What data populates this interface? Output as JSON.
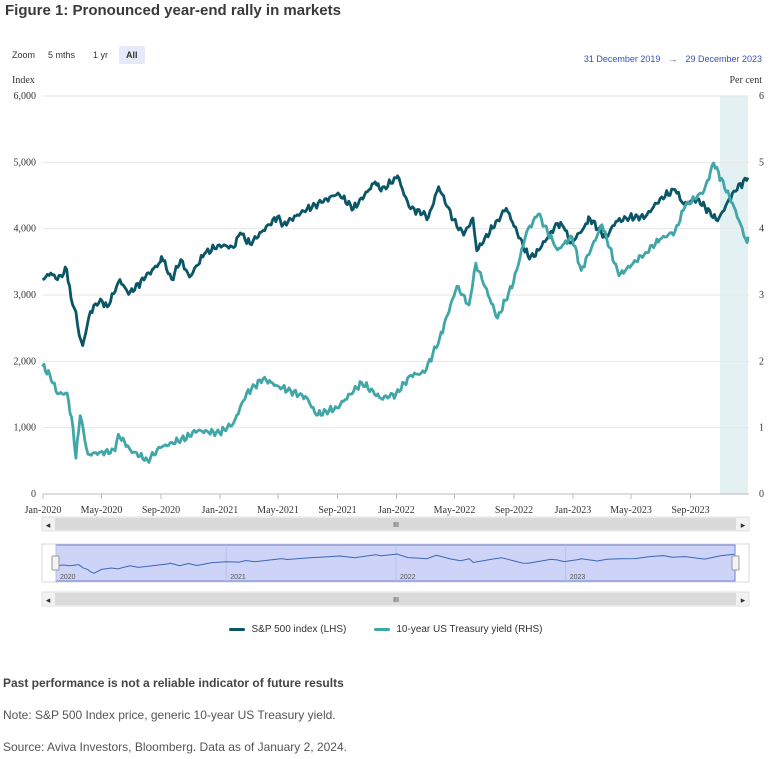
{
  "figure_title": "Figure 1: Pronounced year-end rally in markets",
  "zoom": {
    "label": "Zoom",
    "buttons": [
      {
        "label": "5 mths",
        "active": false
      },
      {
        "label": "1 yr",
        "active": false
      },
      {
        "label": "All",
        "active": true
      }
    ]
  },
  "range": {
    "from": "31 December 2019",
    "arrow": "→",
    "to": "29 December 2023"
  },
  "colors": {
    "sp500": "#0a5566",
    "treasury": "#41a6a8",
    "navigator_fill": "#cdd4f7",
    "highlight": "#e3f1f3"
  },
  "chart_data": {
    "type": "line",
    "title": "Pronounced year-end rally in markets",
    "y_left": {
      "label": "Index",
      "range": [
        0,
        6000
      ],
      "ticks": [
        "0",
        "1,000",
        "2,000",
        "3,000",
        "4,000",
        "5,000",
        "6,000"
      ]
    },
    "y_right": {
      "label": "Per cent",
      "range": [
        0,
        6
      ],
      "ticks": [
        "0",
        "1",
        "2",
        "3",
        "4",
        "5",
        "6"
      ]
    },
    "x_ticks": [
      "Jan-2020",
      "May-2020",
      "Sep-2020",
      "Jan-2021",
      "May-2021",
      "Sep-2021",
      "Jan-2022",
      "May-2022",
      "Sep-2022",
      "Jan-2023",
      "May-2023",
      "Sep-2023"
    ],
    "grid": true,
    "legend_position": "bottom",
    "highlight_period": [
      "2023-11-01",
      "2023-12-29"
    ],
    "series": [
      {
        "name": "S&P 500 index (LHS)",
        "axis": "left",
        "color": "#0a5566",
        "points": [
          [
            "2019-12-31",
            3230
          ],
          [
            "2020-01-17",
            3330
          ],
          [
            "2020-01-31",
            3230
          ],
          [
            "2020-02-19",
            3386
          ],
          [
            "2020-02-28",
            2954
          ],
          [
            "2020-03-09",
            2746
          ],
          [
            "2020-03-16",
            2386
          ],
          [
            "2020-03-23",
            2237
          ],
          [
            "2020-04-08",
            2750
          ],
          [
            "2020-04-29",
            2939
          ],
          [
            "2020-05-13",
            2820
          ],
          [
            "2020-06-08",
            3232
          ],
          [
            "2020-06-26",
            3009
          ],
          [
            "2020-07-31",
            3271
          ],
          [
            "2020-08-31",
            3500
          ],
          [
            "2020-09-02",
            3580
          ],
          [
            "2020-09-23",
            3237
          ],
          [
            "2020-10-12",
            3534
          ],
          [
            "2020-10-30",
            3270
          ],
          [
            "2020-11-30",
            3622
          ],
          [
            "2020-12-31",
            3756
          ],
          [
            "2021-01-29",
            3714
          ],
          [
            "2021-02-12",
            3934
          ],
          [
            "2021-03-04",
            3768
          ],
          [
            "2021-03-31",
            3973
          ],
          [
            "2021-04-30",
            4181
          ],
          [
            "2021-05-12",
            4063
          ],
          [
            "2021-06-30",
            4297
          ],
          [
            "2021-07-30",
            4395
          ],
          [
            "2021-09-02",
            4537
          ],
          [
            "2021-10-04",
            4300
          ],
          [
            "2021-11-18",
            4705
          ],
          [
            "2021-11-30",
            4567
          ],
          [
            "2021-12-31",
            4766
          ],
          [
            "2022-01-03",
            4797
          ],
          [
            "2022-01-27",
            4326
          ],
          [
            "2022-02-24",
            4225
          ],
          [
            "2022-03-08",
            4170
          ],
          [
            "2022-03-29",
            4632
          ],
          [
            "2022-04-29",
            4132
          ],
          [
            "2022-05-20",
            3901
          ],
          [
            "2022-06-08",
            4160
          ],
          [
            "2022-06-16",
            3667
          ],
          [
            "2022-07-29",
            4130
          ],
          [
            "2022-08-16",
            4305
          ],
          [
            "2022-09-30",
            3586
          ],
          [
            "2022-10-12",
            3577
          ],
          [
            "2022-11-30",
            4080
          ],
          [
            "2022-12-13",
            4019
          ],
          [
            "2022-12-28",
            3783
          ],
          [
            "2023-01-31",
            4077
          ],
          [
            "2023-02-02",
            4180
          ],
          [
            "2023-03-10",
            3862
          ],
          [
            "2023-03-31",
            4109
          ],
          [
            "2023-04-28",
            4169
          ],
          [
            "2023-05-31",
            4180
          ],
          [
            "2023-06-30",
            4450
          ],
          [
            "2023-07-31",
            4589
          ],
          [
            "2023-08-18",
            4370
          ],
          [
            "2023-09-15",
            4450
          ],
          [
            "2023-10-27",
            4117
          ],
          [
            "2023-11-30",
            4568
          ],
          [
            "2023-12-29",
            4770
          ]
        ]
      },
      {
        "name": "10-year US Treasury yield (RHS)",
        "axis": "right",
        "color": "#41a6a8",
        "points": [
          [
            "2019-12-31",
            1.92
          ],
          [
            "2020-01-15",
            1.8
          ],
          [
            "2020-01-31",
            1.51
          ],
          [
            "2020-02-20",
            1.52
          ],
          [
            "2020-03-03",
            1.0
          ],
          [
            "2020-03-09",
            0.54
          ],
          [
            "2020-03-18",
            1.18
          ],
          [
            "2020-04-03",
            0.6
          ],
          [
            "2020-05-29",
            0.65
          ],
          [
            "2020-06-05",
            0.9
          ],
          [
            "2020-06-30",
            0.66
          ],
          [
            "2020-08-04",
            0.51
          ],
          [
            "2020-08-31",
            0.7
          ],
          [
            "2020-10-30",
            0.87
          ],
          [
            "2020-11-09",
            0.96
          ],
          [
            "2020-12-31",
            0.92
          ],
          [
            "2021-01-29",
            1.07
          ],
          [
            "2021-02-25",
            1.52
          ],
          [
            "2021-03-31",
            1.74
          ],
          [
            "2021-04-30",
            1.63
          ],
          [
            "2021-06-30",
            1.45
          ],
          [
            "2021-07-19",
            1.19
          ],
          [
            "2021-08-31",
            1.3
          ],
          [
            "2021-10-21",
            1.68
          ],
          [
            "2021-11-30",
            1.44
          ],
          [
            "2021-12-31",
            1.51
          ],
          [
            "2022-01-31",
            1.79
          ],
          [
            "2022-02-28",
            1.83
          ],
          [
            "2022-03-31",
            2.34
          ],
          [
            "2022-05-06",
            3.13
          ],
          [
            "2022-05-31",
            2.85
          ],
          [
            "2022-06-14",
            3.48
          ],
          [
            "2022-07-29",
            2.65
          ],
          [
            "2022-08-31",
            3.19
          ],
          [
            "2022-09-27",
            3.95
          ],
          [
            "2022-10-21",
            4.22
          ],
          [
            "2022-11-30",
            3.68
          ],
          [
            "2022-12-30",
            3.88
          ],
          [
            "2023-01-18",
            3.37
          ],
          [
            "2023-03-02",
            4.06
          ],
          [
            "2023-04-06",
            3.29
          ],
          [
            "2023-05-31",
            3.64
          ],
          [
            "2023-06-30",
            3.84
          ],
          [
            "2023-07-31",
            3.96
          ],
          [
            "2023-08-21",
            4.34
          ],
          [
            "2023-09-29",
            4.57
          ],
          [
            "2023-10-19",
            4.99
          ],
          [
            "2023-11-30",
            4.33
          ],
          [
            "2023-12-27",
            3.79
          ],
          [
            "2023-12-29",
            3.88
          ]
        ]
      }
    ]
  },
  "navigator": {
    "year_labels": [
      "2020",
      "2021",
      "2022",
      "2023"
    ]
  },
  "scrollbar": {
    "left_arrow": "◂",
    "right_arrow": "▸",
    "grip": "III"
  },
  "footer": {
    "disclaimer": "Past performance is not a reliable indicator of future results",
    "note": "Note: S&P 500 Index price, generic 10-year US Treasury yield.",
    "source": "Source: Aviva Investors, Bloomberg. Data as of January 2, 2024."
  }
}
